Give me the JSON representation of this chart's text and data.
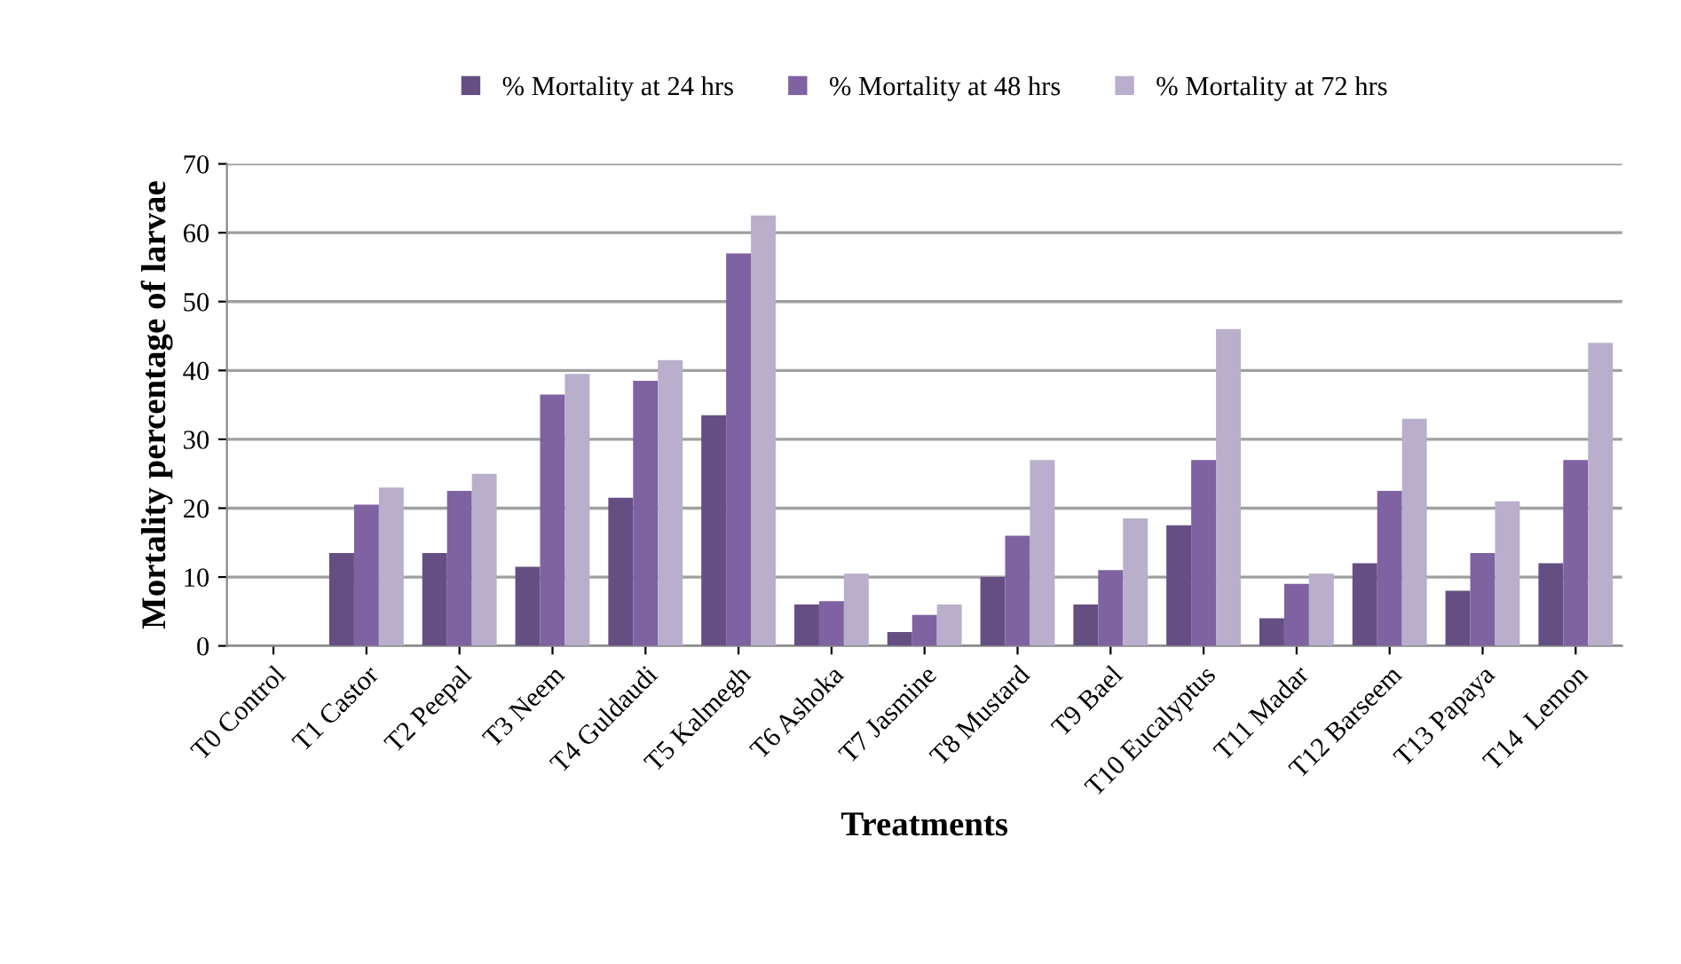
{
  "chart_data": {
    "type": "bar",
    "xlabel": "Treatments",
    "ylabel": "Mortality percentage of larvae",
    "categories": [
      "T0 Control",
      "T1 Castor",
      "T2 Peepal",
      "T3 Neem",
      "T4 Guldaudi",
      "T5 Kalmegh",
      "T6 Ashoka",
      "T7 Jasmine",
      "T8 Mustard",
      "T9 Bael",
      "T10 Eucalyptus",
      "T11 Madar",
      "T12 Barseem",
      "T13 Papaya",
      "T14  Lemon"
    ],
    "series": [
      {
        "name": "% Mortality at 24 hrs",
        "color": "#654f82",
        "values": [
          0,
          13.5,
          13.5,
          11.5,
          21.5,
          33.5,
          6,
          2,
          10,
          6,
          17.5,
          4,
          12,
          8,
          12
        ]
      },
      {
        "name": "% Mortality at 48 hrs",
        "color": "#7e62a1",
        "values": [
          0,
          20.5,
          22.5,
          36.5,
          38.5,
          57,
          6.5,
          4.5,
          16,
          11,
          27,
          9,
          22.5,
          13.5,
          27
        ]
      },
      {
        "name": "% Mortality at 72 hrs",
        "color": "#b9aecb",
        "values": [
          0,
          23,
          25,
          39.5,
          41.5,
          62.5,
          10.5,
          6,
          27,
          18.5,
          46,
          10.5,
          33,
          21,
          44
        ]
      }
    ],
    "ylim": [
      0,
      70
    ],
    "yticks": [
      0,
      10,
      20,
      30,
      40,
      50,
      60,
      70
    ],
    "grid": "y",
    "legend": "top"
  }
}
